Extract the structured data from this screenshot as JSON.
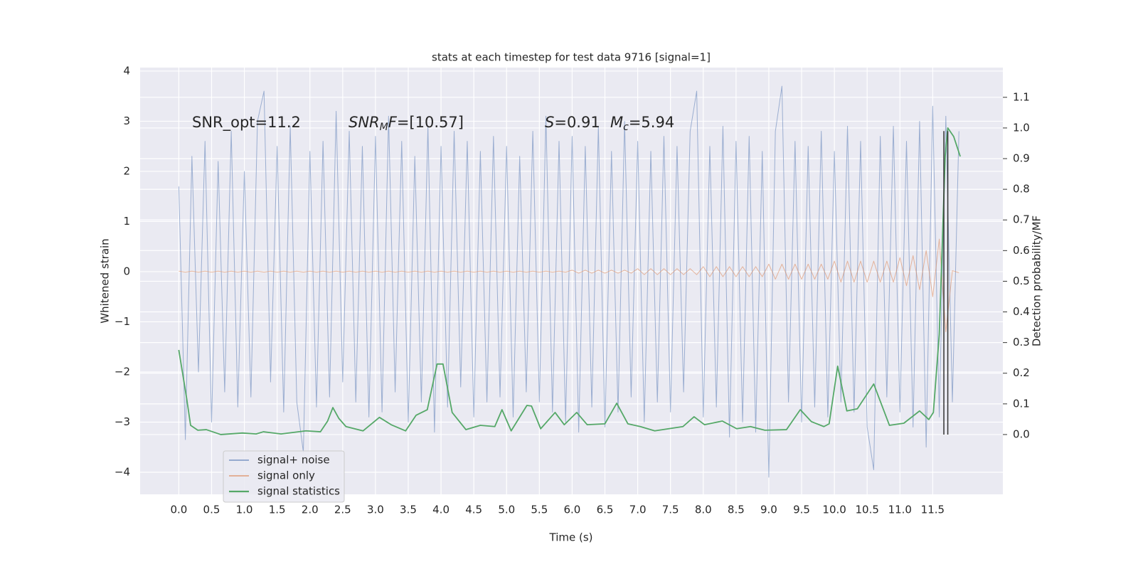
{
  "chart_data": {
    "type": "line",
    "title": "stats at each timestep for test data 9716 [signal=1]",
    "xlabel": "Time (s)",
    "ylabel": "Whitened strain",
    "y2label": "Detection probability/MF",
    "annotations": [
      {
        "parts": [
          "SNR_opt=11.2"
        ]
      },
      {
        "parts": [
          "SNR",
          "M",
          "F",
          "=[10.57]"
        ]
      },
      {
        "parts": [
          "S",
          "=0.91"
        ]
      },
      {
        "parts": [
          "M",
          "c",
          "=5.94"
        ]
      }
    ],
    "xlim": [
      -0.59,
      12.57
    ],
    "ylim": [
      -4.44,
      4.07
    ],
    "y2lim": [
      -0.195,
      1.197
    ],
    "xticks": [
      {
        "value": 0,
        "label": "0.0"
      },
      0.5,
      {
        "value": 1,
        "label": "1.0"
      },
      1.5,
      {
        "value": 2,
        "label": "2.0"
      },
      2.5,
      {
        "value": 3,
        "label": "3.0"
      },
      3.5,
      {
        "value": 4,
        "label": "4.0"
      },
      4.5,
      {
        "value": 5,
        "label": "5.0"
      },
      5.5,
      {
        "value": 6,
        "label": "6.0"
      },
      6.5,
      {
        "value": 7,
        "label": "7.0"
      },
      7.5,
      {
        "value": 8,
        "label": "8.0"
      },
      8.5,
      {
        "value": 9,
        "label": "9.0"
      },
      9.5,
      {
        "value": 10,
        "label": "10.0"
      },
      10.5,
      {
        "value": 11,
        "label": "11.0"
      },
      11.5
    ],
    "yticks": [
      {
        "value": -4,
        "label": "−4"
      },
      {
        "value": -3,
        "label": "−3"
      },
      {
        "value": -2,
        "label": "−2"
      },
      {
        "value": -1,
        "label": "−1"
      },
      0,
      1,
      2,
      3,
      4
    ],
    "y2ticks": [
      {
        "value": 0,
        "label": "0.0"
      },
      0.1,
      0.2,
      0.3,
      0.4,
      0.5,
      0.6,
      0.7,
      0.8,
      0.9,
      {
        "value": 1,
        "label": "1.0"
      },
      1.1
    ],
    "grid": true,
    "legend": "lower left",
    "x": [
      0,
      0.1,
      0.2,
      0.3,
      0.4,
      0.5,
      0.6,
      0.7,
      0.8,
      0.9,
      1,
      1.1,
      1.2,
      1.3,
      1.4,
      1.5,
      1.6,
      1.7,
      1.8,
      1.9,
      2,
      2.1,
      2.2,
      2.3,
      2.4,
      2.5,
      2.6,
      2.7,
      2.8,
      2.9,
      3,
      3.1,
      3.2,
      3.3,
      3.4,
      3.5,
      3.6,
      3.7,
      3.8,
      3.9,
      4,
      4.1,
      4.2,
      4.3,
      4.4,
      4.5,
      4.6,
      4.7,
      4.8,
      4.9,
      5,
      5.1,
      5.2,
      5.3,
      5.4,
      5.5,
      5.6,
      5.7,
      5.8,
      5.9,
      6,
      6.1,
      6.2,
      6.3,
      6.4,
      6.5,
      6.6,
      6.7,
      6.8,
      6.9,
      7,
      7.1,
      7.2,
      7.3,
      7.4,
      7.5,
      7.6,
      7.7,
      7.8,
      7.9,
      8,
      8.1,
      8.2,
      8.3,
      8.4,
      8.5,
      8.6,
      8.7,
      8.8,
      8.9,
      9,
      9.1,
      9.2,
      9.3,
      9.4,
      9.5,
      9.6,
      9.7,
      9.8,
      9.9,
      10,
      10.1,
      10.2,
      10.3,
      10.4,
      10.5,
      10.6,
      10.7,
      10.8,
      10.9,
      11,
      11.1,
      11.2,
      11.3,
      11.4,
      11.5,
      11.6,
      11.7,
      11.8,
      11.9
    ],
    "series": [
      {
        "name": "signal+ noise",
        "color": "#4c72b0",
        "values": [
          1.7,
          -3.35,
          2.3,
          -2.0,
          2.6,
          -3.0,
          2.2,
          -2.4,
          2.8,
          -2.7,
          2.0,
          -2.5,
          3.0,
          3.6,
          -2.2,
          2.5,
          -2.8,
          2.9,
          -2.6,
          -3.6,
          2.4,
          -2.7,
          2.6,
          -2.5,
          3.2,
          -2.2,
          2.8,
          -2.6,
          2.5,
          -2.9,
          2.7,
          -2.8,
          3.1,
          -2.4,
          2.6,
          -3.0,
          2.3,
          -2.6,
          2.9,
          -3.2,
          2.5,
          -2.7,
          2.8,
          -2.3,
          2.6,
          -2.9,
          2.4,
          -2.6,
          2.7,
          -2.5,
          2.5,
          -2.9,
          2.3,
          -2.4,
          2.8,
          -2.6,
          3.1,
          -2.8,
          2.6,
          -3.0,
          2.7,
          -3.2,
          2.5,
          -2.7,
          2.9,
          -3.1,
          2.4,
          -2.8,
          3.0,
          -2.5,
          2.6,
          -3.0,
          2.4,
          -2.6,
          2.7,
          -2.8,
          2.5,
          -2.4,
          2.8,
          3.6,
          -2.9,
          2.5,
          -2.7,
          2.9,
          -3.3,
          2.6,
          -3.0,
          2.7,
          -3.2,
          2.4,
          -4.1,
          2.8,
          3.7,
          -2.6,
          2.6,
          -3.0,
          2.5,
          -2.7,
          2.8,
          -2.9,
          2.4,
          -2.6,
          2.9,
          -2.8,
          2.6,
          -3.1,
          -3.95,
          2.7,
          -2.5,
          2.9,
          -2.8,
          2.6,
          -3.1,
          3.0,
          -3.5,
          3.3,
          -2.9,
          3.1,
          -2.6,
          2.8
        ]
      },
      {
        "name": "signal only",
        "color": "#dd8452",
        "values": [
          0.01,
          -0.01,
          0.01,
          -0.01,
          0.01,
          -0.01,
          0.01,
          -0.01,
          0.01,
          -0.01,
          0.01,
          -0.01,
          0.01,
          -0.01,
          0.01,
          -0.01,
          0.01,
          -0.01,
          0.01,
          -0.01,
          0.01,
          -0.01,
          0.01,
          -0.01,
          0.01,
          -0.01,
          0.01,
          -0.01,
          0.01,
          -0.01,
          0.01,
          -0.01,
          0.01,
          -0.01,
          0.01,
          -0.01,
          0.01,
          -0.01,
          0.01,
          -0.01,
          0.01,
          -0.01,
          0.01,
          -0.01,
          0.01,
          -0.01,
          0.01,
          -0.01,
          0.01,
          -0.01,
          0.01,
          -0.01,
          0.01,
          -0.01,
          0.01,
          -0.01,
          0.01,
          -0.01,
          0.01,
          -0.01,
          0.03,
          -0.03,
          0.03,
          -0.03,
          0.03,
          -0.03,
          0.03,
          -0.03,
          0.03,
          -0.03,
          0.06,
          -0.06,
          0.06,
          -0.06,
          0.06,
          -0.06,
          0.06,
          -0.06,
          0.06,
          -0.06,
          0.1,
          -0.1,
          0.1,
          -0.1,
          0.1,
          -0.1,
          0.1,
          -0.1,
          0.1,
          -0.1,
          0.15,
          -0.15,
          0.15,
          -0.15,
          0.15,
          -0.15,
          0.15,
          -0.15,
          0.15,
          -0.15,
          0.21,
          -0.21,
          0.21,
          -0.21,
          0.21,
          -0.21,
          0.21,
          -0.21,
          0.21,
          -0.21,
          0.28,
          -0.28,
          0.32,
          -0.36,
          0.42,
          -0.5,
          0.65,
          -1.2,
          0.02,
          -0.02
        ]
      },
      {
        "name": "signal statistics",
        "color": "#55a868",
        "axis": "y2",
        "x": [
          0,
          0.12,
          0.18,
          0.29,
          0.42,
          0.64,
          0.97,
          1.18,
          1.29,
          1.56,
          1.94,
          2.16,
          2.27,
          2.35,
          2.44,
          2.55,
          2.81,
          3.06,
          3.24,
          3.46,
          3.62,
          3.79,
          3.94,
          4.03,
          4.17,
          4.38,
          4.6,
          4.82,
          4.93,
          5.07,
          5.31,
          5.38,
          5.52,
          5.74,
          5.88,
          6.07,
          6.23,
          6.5,
          6.68,
          6.85,
          7.04,
          7.26,
          7.69,
          7.86,
          8.02,
          8.29,
          8.51,
          8.72,
          8.94,
          9.27,
          9.48,
          9.65,
          9.84,
          9.92,
          10.05,
          10.19,
          10.35,
          10.6,
          10.84,
          11.06,
          11.3,
          11.44,
          11.51,
          11.6,
          11.69,
          11.73,
          11.82,
          11.92
        ],
        "values": [
          0.276,
          0.118,
          0.03,
          0.014,
          0.016,
          0.0,
          0.005,
          0.002,
          0.009,
          0.002,
          0.012,
          0.009,
          0.044,
          0.088,
          0.053,
          0.026,
          0.012,
          0.056,
          0.032,
          0.012,
          0.063,
          0.081,
          0.23,
          0.23,
          0.072,
          0.016,
          0.03,
          0.026,
          0.081,
          0.012,
          0.095,
          0.093,
          0.019,
          0.072,
          0.032,
          0.072,
          0.032,
          0.035,
          0.102,
          0.035,
          0.026,
          0.012,
          0.026,
          0.058,
          0.032,
          0.044,
          0.019,
          0.026,
          0.014,
          0.016,
          0.081,
          0.042,
          0.026,
          0.035,
          0.223,
          0.077,
          0.084,
          0.165,
          0.03,
          0.037,
          0.077,
          0.049,
          0.072,
          0.327,
          0.907,
          1.0,
          0.972,
          0.907
        ]
      }
    ],
    "vline_x": [
      11.67,
      11.73
    ],
    "vline_y2": [
      0,
      0.99
    ],
    "vline_color": "#333333"
  }
}
